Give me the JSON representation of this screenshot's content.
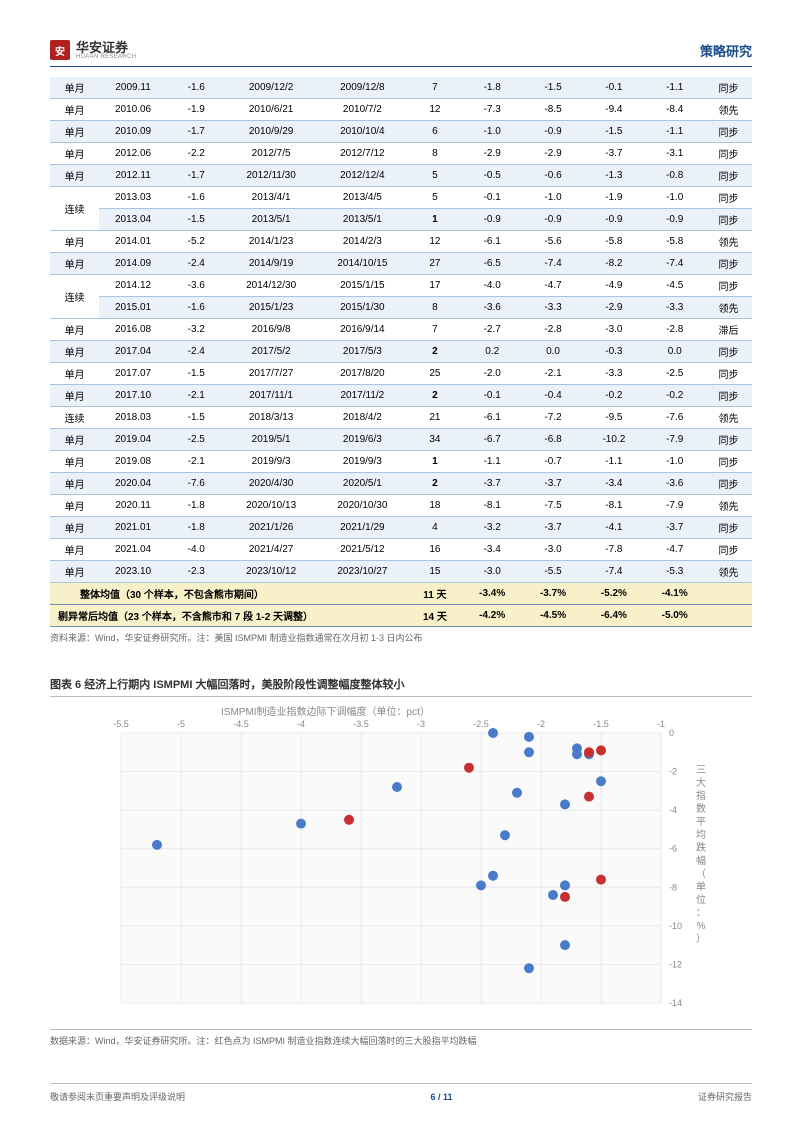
{
  "header": {
    "logo_char": "安",
    "logo_cn": "华安证券",
    "logo_en": "HUAAN RESEARCH",
    "right": "策略研究"
  },
  "table": {
    "rows": [
      {
        "type": "单月",
        "ym": "2009.11",
        "v1": "-1.6",
        "d1": "2009/12/2",
        "d2": "2009/12/8",
        "days": "7",
        "a1": "-1.8",
        "a2": "-1.5",
        "a3": "-0.1",
        "a4": "-1.1",
        "signal": "同步",
        "shade": "odd"
      },
      {
        "type": "单月",
        "ym": "2010.06",
        "v1": "-1.9",
        "d1": "2010/6/21",
        "d2": "2010/7/2",
        "days": "12",
        "a1": "-7.3",
        "a2": "-8.5",
        "a3": "-9.4",
        "a4": "-8.4",
        "signal": "领先",
        "shade": "even"
      },
      {
        "type": "单月",
        "ym": "2010.09",
        "v1": "-1.7",
        "d1": "2010/9/29",
        "d2": "2010/10/4",
        "days": "6",
        "a1": "-1.0",
        "a2": "-0.9",
        "a3": "-1.5",
        "a4": "-1.1",
        "signal": "同步",
        "shade": "odd"
      },
      {
        "type": "单月",
        "ym": "2012.06",
        "v1": "-2.2",
        "d1": "2012/7/5",
        "d2": "2012/7/12",
        "days": "8",
        "a1": "-2.9",
        "a2": "-2.9",
        "a3": "-3.7",
        "a4": "-3.1",
        "signal": "同步",
        "shade": "even"
      },
      {
        "type": "单月",
        "ym": "2012.11",
        "v1": "-1.7",
        "d1": "2012/11/30",
        "d2": "2012/12/4",
        "days": "5",
        "a1": "-0.5",
        "a2": "-0.6",
        "a3": "-1.3",
        "a4": "-0.8",
        "signal": "同步",
        "shade": "odd"
      },
      {
        "type": "连续",
        "rowspan": 2,
        "ym": "2013.03",
        "v1": "-1.6",
        "d1": "2013/4/1",
        "d2": "2013/4/5",
        "days": "5",
        "a1": "-0.1",
        "a2": "-1.0",
        "a3": "-1.9",
        "a4": "-1.0",
        "signal": "同步",
        "shade": "even"
      },
      {
        "skip": true,
        "ym": "2013.04",
        "v1": "-1.5",
        "d1": "2013/5/1",
        "d2": "2013/5/1",
        "days": "1",
        "bold": true,
        "a1": "-0.9",
        "a2": "-0.9",
        "a3": "-0.9",
        "a4": "-0.9",
        "signal": "同步",
        "shade": "odd"
      },
      {
        "type": "单月",
        "ym": "2014.01",
        "v1": "-5.2",
        "d1": "2014/1/23",
        "d2": "2014/2/3",
        "days": "12",
        "a1": "-6.1",
        "a2": "-5.6",
        "a3": "-5.8",
        "a4": "-5.8",
        "signal": "领先",
        "shade": "even"
      },
      {
        "type": "单月",
        "ym": "2014.09",
        "v1": "-2.4",
        "d1": "2014/9/19",
        "d2": "2014/10/15",
        "days": "27",
        "a1": "-6.5",
        "a2": "-7.4",
        "a3": "-8.2",
        "a4": "-7.4",
        "signal": "同步",
        "shade": "odd"
      },
      {
        "type": "连续",
        "rowspan": 2,
        "ym": "2014.12",
        "v1": "-3.6",
        "d1": "2014/12/30",
        "d2": "2015/1/15",
        "days": "17",
        "a1": "-4.0",
        "a2": "-4.7",
        "a3": "-4.9",
        "a4": "-4.5",
        "signal": "同步",
        "shade": "even"
      },
      {
        "skip": true,
        "ym": "2015.01",
        "v1": "-1.6",
        "d1": "2015/1/23",
        "d2": "2015/1/30",
        "days": "8",
        "a1": "-3.6",
        "a2": "-3.3",
        "a3": "-2.9",
        "a4": "-3.3",
        "signal": "领先",
        "shade": "odd"
      },
      {
        "type": "单月",
        "ym": "2016.08",
        "v1": "-3.2",
        "d1": "2016/9/8",
        "d2": "2016/9/14",
        "days": "7",
        "a1": "-2.7",
        "a2": "-2.8",
        "a3": "-3.0",
        "a4": "-2.8",
        "signal": "滞后",
        "shade": "even"
      },
      {
        "type": "单月",
        "ym": "2017.04",
        "v1": "-2.4",
        "d1": "2017/5/2",
        "d2": "2017/5/3",
        "days": "2",
        "bold": true,
        "a1": "0.2",
        "a2": "0.0",
        "a3": "-0.3",
        "a4": "0.0",
        "signal": "同步",
        "shade": "odd"
      },
      {
        "type": "单月",
        "ym": "2017.07",
        "v1": "-1.5",
        "d1": "2017/7/27",
        "d2": "2017/8/20",
        "days": "25",
        "a1": "-2.0",
        "a2": "-2.1",
        "a3": "-3.3",
        "a4": "-2.5",
        "signal": "同步",
        "shade": "even"
      },
      {
        "type": "单月",
        "ym": "2017.10",
        "v1": "-2.1",
        "d1": "2017/11/1",
        "d2": "2017/11/2",
        "days": "2",
        "bold": true,
        "a1": "-0.1",
        "a2": "-0.4",
        "a3": "-0.2",
        "a4": "-0.2",
        "signal": "同步",
        "shade": "odd"
      },
      {
        "type": "连续",
        "ym": "2018.03",
        "v1": "-1.5",
        "d1": "2018/3/13",
        "d2": "2018/4/2",
        "days": "21",
        "a1": "-6.1",
        "a2": "-7.2",
        "a3": "-9.5",
        "a4": "-7.6",
        "signal": "领先",
        "shade": "even"
      },
      {
        "type": "单月",
        "ym": "2019.04",
        "v1": "-2.5",
        "d1": "2019/5/1",
        "d2": "2019/6/3",
        "days": "34",
        "a1": "-6.7",
        "a2": "-6.8",
        "a3": "-10.2",
        "a4": "-7.9",
        "signal": "同步",
        "shade": "odd"
      },
      {
        "type": "单月",
        "ym": "2019.08",
        "v1": "-2.1",
        "d1": "2019/9/3",
        "d2": "2019/9/3",
        "days": "1",
        "bold": true,
        "a1": "-1.1",
        "a2": "-0.7",
        "a3": "-1.1",
        "a4": "-1.0",
        "signal": "同步",
        "shade": "even"
      },
      {
        "type": "单月",
        "ym": "2020.04",
        "v1": "-7.6",
        "d1": "2020/4/30",
        "d2": "2020/5/1",
        "days": "2",
        "bold": true,
        "a1": "-3.7",
        "a2": "-3.7",
        "a3": "-3.4",
        "a4": "-3.6",
        "signal": "同步",
        "shade": "odd"
      },
      {
        "type": "单月",
        "ym": "2020.11",
        "v1": "-1.8",
        "d1": "2020/10/13",
        "d2": "2020/10/30",
        "days": "18",
        "a1": "-8.1",
        "a2": "-7.5",
        "a3": "-8.1",
        "a4": "-7.9",
        "signal": "领先",
        "shade": "even"
      },
      {
        "type": "单月",
        "ym": "2021.01",
        "v1": "-1.8",
        "d1": "2021/1/26",
        "d2": "2021/1/29",
        "days": "4",
        "a1": "-3.2",
        "a2": "-3.7",
        "a3": "-4.1",
        "a4": "-3.7",
        "signal": "同步",
        "shade": "odd"
      },
      {
        "type": "单月",
        "ym": "2021.04",
        "v1": "-4.0",
        "d1": "2021/4/27",
        "d2": "2021/5/12",
        "days": "16",
        "a1": "-3.4",
        "a2": "-3.0",
        "a3": "-7.8",
        "a4": "-4.7",
        "signal": "同步",
        "shade": "even"
      },
      {
        "type": "单月",
        "ym": "2023.10",
        "v1": "-2.3",
        "d1": "2023/10/12",
        "d2": "2023/10/27",
        "days": "15",
        "a1": "-3.0",
        "a2": "-5.5",
        "a3": "-7.4",
        "a4": "-5.3",
        "signal": "领先",
        "shade": "odd"
      }
    ],
    "summary1": {
      "label": "整体均值（30 个样本，不包含熊市期间）",
      "days": "11 天",
      "a1": "-3.4%",
      "a2": "-3.7%",
      "a3": "-5.2%",
      "a4": "-4.1%"
    },
    "summary2": {
      "label": "剔异常后均值（23 个样本，不含熊市和 7 段 1-2 天调整）",
      "days": "14 天",
      "a1": "-4.2%",
      "a2": "-4.5%",
      "a3": "-6.4%",
      "a4": "-5.0%"
    }
  },
  "source1": "资料来源：Wind，华安证券研究所。注：美国 ISMPMI 制造业指数通常在次月初 1-3 日内公布",
  "chart": {
    "title": "图表 6 经济上行期内 ISMPMI 大幅回落时，美股阶段性调整幅度整体较小",
    "x_label": "ISMPMI制造业指数边际下调幅度（单位：pct）",
    "y_label_lines": [
      "三",
      "大",
      "指",
      "数",
      "平",
      "均",
      "跌",
      "幅",
      "（",
      "单",
      "位",
      "：",
      "%",
      "）"
    ],
    "xlim": [
      -5.5,
      -1.0
    ],
    "ylim": [
      -14,
      0
    ],
    "xticks": [
      -5.5,
      -5,
      -4.5,
      -4,
      -3.5,
      -3,
      -2.5,
      -2,
      -1.5,
      -1
    ],
    "yticks": [
      0,
      -2,
      -4,
      -6,
      -8,
      -10,
      -12,
      -14
    ],
    "blue_color": "#4a7bc8",
    "red_color": "#c83030",
    "bg_color": "#fafafa",
    "grid_color": "#e8e8e8",
    "dot_radius": 5,
    "blue_points": [
      {
        "x": -5.2,
        "y": -5.8
      },
      {
        "x": -4.0,
        "y": -4.7
      },
      {
        "x": -2.5,
        "y": -7.9
      },
      {
        "x": -2.4,
        "y": -7.4
      },
      {
        "x": -2.4,
        "y": 0.0
      },
      {
        "x": -3.2,
        "y": -2.8
      },
      {
        "x": -2.3,
        "y": -5.3
      },
      {
        "x": -2.2,
        "y": -3.1
      },
      {
        "x": -2.1,
        "y": -0.2
      },
      {
        "x": -2.1,
        "y": -1.0
      },
      {
        "x": -1.9,
        "y": -8.4
      },
      {
        "x": -2.1,
        "y": -12.2
      },
      {
        "x": -1.8,
        "y": -11.0
      },
      {
        "x": -1.8,
        "y": -3.7
      },
      {
        "x": -1.8,
        "y": -7.9
      },
      {
        "x": -1.7,
        "y": -1.1
      },
      {
        "x": -1.7,
        "y": -0.8
      },
      {
        "x": -1.6,
        "y": -1.1
      },
      {
        "x": -1.5,
        "y": -2.5
      }
    ],
    "red_points": [
      {
        "x": -3.6,
        "y": -4.5
      },
      {
        "x": -1.6,
        "y": -1.0
      },
      {
        "x": -1.5,
        "y": -0.9
      },
      {
        "x": -1.6,
        "y": -3.3
      },
      {
        "x": -1.5,
        "y": -7.6
      },
      {
        "x": -2.6,
        "y": -1.8
      },
      {
        "x": -1.8,
        "y": -8.5
      }
    ]
  },
  "source2": "数据来源：Wind，华安证券研究所。注：红色点为 ISMPMI 制造业指数连续大幅回落时的三大股指平均跌幅",
  "footer": {
    "left": "敬请参阅末页重要声明及评级说明",
    "page": "6 / 11",
    "right": "证券研究报告"
  }
}
